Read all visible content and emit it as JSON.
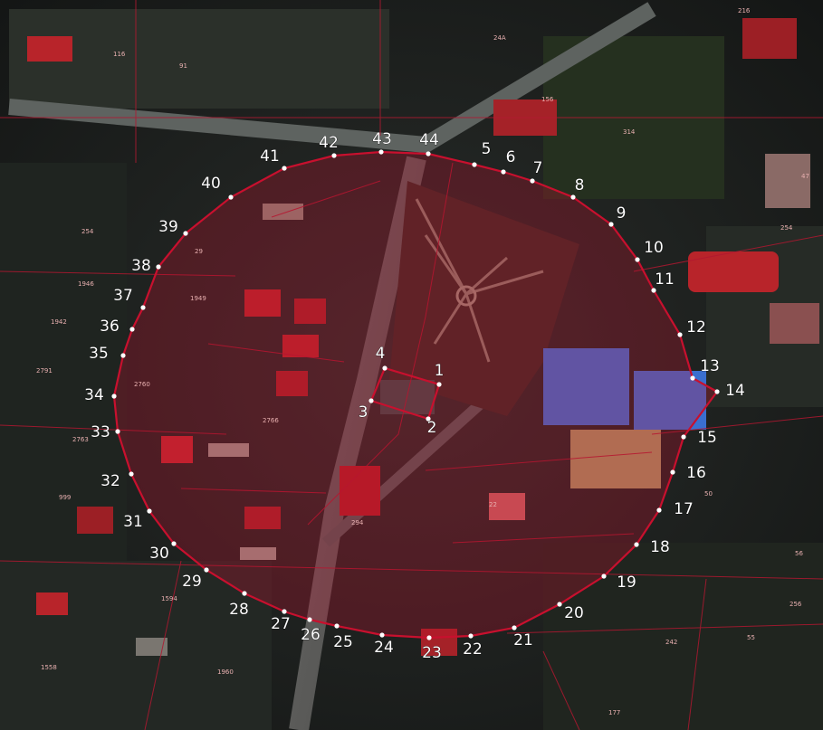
{
  "colors": {
    "boundary": "#c8102e",
    "cadastre_lines": "#b01830",
    "point_marker": "#ffffff",
    "point_label": "#ffffff",
    "roofs_red": "#b8242a",
    "roofs_blue": "#3a6fd0"
  },
  "boundary_points": [
    {
      "label": "1"
    },
    {
      "label": "2"
    },
    {
      "label": "3"
    },
    {
      "label": "4"
    },
    {
      "label": "5"
    },
    {
      "label": "6"
    },
    {
      "label": "7"
    },
    {
      "label": "8"
    },
    {
      "label": "9"
    },
    {
      "label": "10"
    },
    {
      "label": "11"
    },
    {
      "label": "12"
    },
    {
      "label": "13"
    },
    {
      "label": "14"
    },
    {
      "label": "15"
    },
    {
      "label": "16"
    },
    {
      "label": "17"
    },
    {
      "label": "18"
    },
    {
      "label": "19"
    },
    {
      "label": "20"
    },
    {
      "label": "21"
    },
    {
      "label": "22"
    },
    {
      "label": "23"
    },
    {
      "label": "24"
    },
    {
      "label": "25"
    },
    {
      "label": "26"
    },
    {
      "label": "27"
    },
    {
      "label": "28"
    },
    {
      "label": "29"
    },
    {
      "label": "30"
    },
    {
      "label": "31"
    },
    {
      "label": "32"
    },
    {
      "label": "33"
    },
    {
      "label": "34"
    },
    {
      "label": "35"
    },
    {
      "label": "36"
    },
    {
      "label": "37"
    },
    {
      "label": "38"
    },
    {
      "label": "39"
    },
    {
      "label": "40"
    },
    {
      "label": "41"
    },
    {
      "label": "42"
    },
    {
      "label": "43"
    },
    {
      "label": "44"
    }
  ],
  "parcel_numbers": [
    "216",
    "24A",
    "116",
    "91",
    "156",
    "314",
    "254",
    "1946",
    "1949",
    "1942",
    "2791",
    "2760",
    "2763",
    "2766",
    "999",
    "1594",
    "1558",
    "177",
    "242",
    "256",
    "55",
    "50",
    "56",
    "29",
    "294",
    "22",
    "47",
    "1960",
    "254"
  ]
}
